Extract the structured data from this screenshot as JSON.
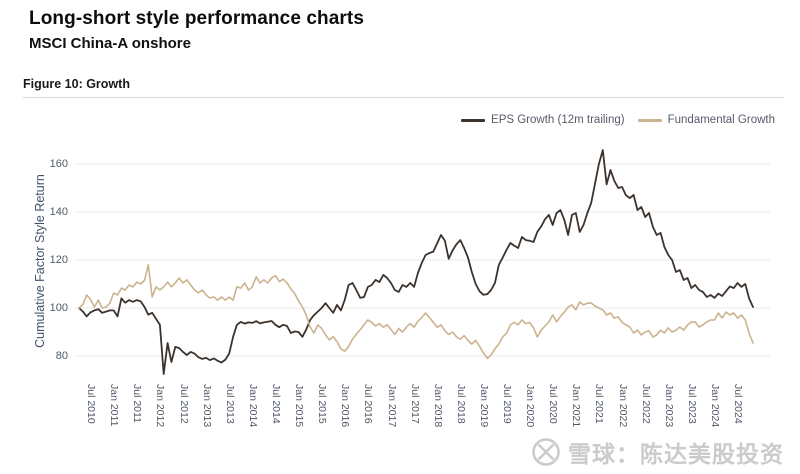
{
  "header": {
    "title": "Long-short style performance charts",
    "subtitle": "MSCI China-A onshore",
    "figure_label": "Figure 10: Growth"
  },
  "colors": {
    "eps_line": "#3d322c",
    "fundamental_line": "#cbb38d",
    "gridline": "#eaeaea",
    "axis_text": "#4f5a68",
    "watermark": "#c9c9c9"
  },
  "legend": {
    "items": [
      {
        "label": "EPS Growth (12m trailing)",
        "color": "#3d322c"
      },
      {
        "label": "Fundamental Growth",
        "color": "#cbb38d"
      }
    ]
  },
  "watermark": {
    "icon": "xueqiu-snowball-logo",
    "text": "雪球：陈达美股投资"
  },
  "chart_data": {
    "type": "line",
    "title": "Figure 10: Growth",
    "xlabel": "",
    "ylabel": "Cumulative Factor Style Return",
    "ylim": [
      70,
      168
    ],
    "yticks": [
      80,
      100,
      120,
      140,
      160
    ],
    "grid": "horizontal",
    "legend_position": "top-right",
    "x_start": "2010-04",
    "x_end": "2024-11",
    "x_frequency": "monthly",
    "xticklabels": [
      "Jul 2010",
      "Jan 2011",
      "Jul 2011",
      "Jan 2012",
      "Jul 2012",
      "Jan 2013",
      "Jul 2013",
      "Jan 2014",
      "Jul 2014",
      "Jan 2015",
      "Jul 2015",
      "Jan 2016",
      "Jul 2016",
      "Jan 2017",
      "Jul 2017",
      "Jan 2018",
      "Jul 2018",
      "Jan 2019",
      "Jul 2019",
      "Jan 2020",
      "Jul 2020",
      "Jan 2021",
      "Jul 2021",
      "Jan 2022",
      "Jul 2022",
      "Jan 2023",
      "Jul 2023",
      "Jan 2024",
      "Jul 2024"
    ],
    "series": [
      {
        "name": "EPS Growth (12m trailing)",
        "color": "#3d322c",
        "values": [
          100,
          98.5,
          96.5,
          98.2,
          99,
          99.5,
          98,
          98.5,
          99,
          99,
          96.5,
          104,
          102.2,
          103.3,
          102.6,
          103.3,
          102.8,
          100.4,
          97.2,
          98,
          95.5,
          93,
          72.5,
          85.4,
          77.5,
          83.8,
          83.3,
          81.7,
          80.4,
          81.7,
          81,
          79.5,
          78.8,
          79.2,
          78.3,
          79,
          78,
          77.3,
          78.5,
          81,
          88,
          93,
          94.2,
          93.5,
          94,
          93.8,
          94.5,
          93.6,
          94,
          94.3,
          94.6,
          93,
          92,
          93,
          92.5,
          89.6,
          90.2,
          90,
          88,
          91,
          95,
          97,
          98.5,
          100,
          102,
          100,
          98,
          101.3,
          99,
          103.3,
          109.6,
          110.4,
          107.5,
          104.2,
          104.6,
          108.8,
          109.6,
          111.7,
          110.8,
          113.8,
          112.5,
          110.4,
          107.5,
          106.7,
          109.6,
          108.8,
          110.4,
          108.8,
          114.6,
          118.8,
          122.1,
          122.9,
          123.5,
          127,
          130.4,
          128,
          120.5,
          124,
          126.5,
          128.3,
          125,
          121,
          115,
          110,
          107,
          105.5,
          105.8,
          107.5,
          110.5,
          117.9,
          121,
          124.2,
          127.1,
          126,
          125,
          129.6,
          128.3,
          128,
          127.5,
          131.7,
          134,
          137,
          138.8,
          134.6,
          139.6,
          140.8,
          136.7,
          130.4,
          138.8,
          139.6,
          131.7,
          134.6,
          139.6,
          143.8,
          152,
          160,
          165.8,
          151.5,
          157.5,
          153,
          150,
          150.4,
          147,
          145.8,
          147.1,
          140.8,
          142.1,
          137.9,
          139.6,
          133.8,
          130.4,
          131.3,
          125.4,
          122.1,
          120,
          115,
          115.8,
          111.7,
          112.5,
          108.3,
          109.6,
          107.5,
          106.7,
          104.6,
          105.4,
          104.2,
          106,
          105,
          107,
          109,
          108.3,
          110.4,
          108.8,
          110,
          104,
          100.4
        ]
      },
      {
        "name": "Fundamental Growth",
        "color": "#cbb38d",
        "values": [
          100,
          101.5,
          105.4,
          103.5,
          100.4,
          103.3,
          100,
          100.4,
          102,
          106.3,
          105.4,
          108.3,
          107.5,
          109.6,
          108.8,
          110.8,
          110,
          111.5,
          118,
          104.6,
          108.8,
          107.5,
          108.8,
          110.8,
          108.8,
          110.4,
          112.5,
          110.4,
          111.7,
          109.6,
          107.5,
          106.3,
          107.5,
          105.4,
          104.2,
          104.6,
          103.3,
          104.6,
          103.3,
          104.6,
          103.3,
          108.8,
          108.3,
          110.4,
          107.5,
          108.8,
          113,
          110.4,
          111.7,
          110.4,
          112.5,
          113.5,
          111,
          112,
          110.5,
          108,
          106,
          103,
          100.4,
          97.1,
          92.1,
          89.6,
          92.9,
          91.5,
          88.8,
          86.7,
          88,
          86,
          83,
          82,
          84,
          87,
          89,
          91,
          93,
          95,
          94,
          92.5,
          93.5,
          92,
          93,
          91,
          89,
          91.5,
          90,
          92,
          93.5,
          92,
          94.5,
          96,
          97.9,
          96,
          94,
          92,
          93,
          90.5,
          89,
          90,
          88,
          87,
          88.5,
          86.5,
          85,
          86.5,
          84,
          81.3,
          79,
          80.5,
          83,
          85,
          87.9,
          89.5,
          92.9,
          94,
          93,
          95,
          93.5,
          94,
          91.7,
          87.9,
          90.8,
          92.5,
          94.2,
          97.1,
          94.2,
          96.5,
          98.3,
          100.4,
          101.3,
          99.2,
          102.5,
          101.3,
          102,
          102.1,
          100.8,
          100,
          99.2,
          97.1,
          97.9,
          95.8,
          96.3,
          94,
          93,
          92.1,
          89.6,
          90.8,
          88.8,
          90,
          90.5,
          87.9,
          88.8,
          90.8,
          89.6,
          91.7,
          90,
          90.8,
          92.1,
          90.8,
          92.9,
          94.2,
          94.2,
          92.1,
          92.9,
          94.2,
          95,
          95,
          97.9,
          95.8,
          98.3,
          97.1,
          97.9,
          95.8,
          97.1,
          95,
          89.6,
          85.4
        ]
      }
    ]
  }
}
